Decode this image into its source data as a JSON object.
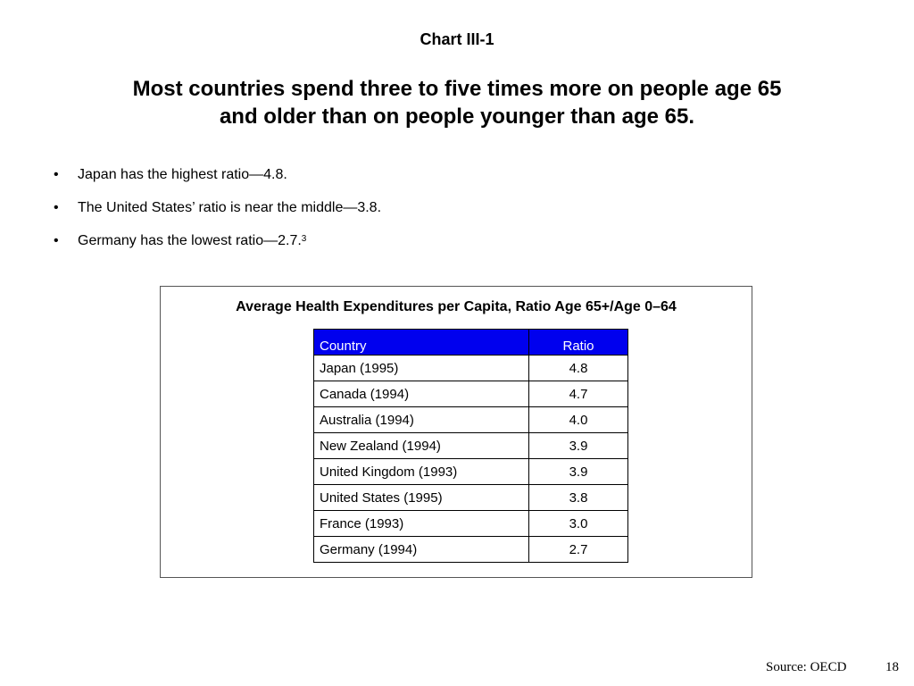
{
  "slide": {
    "chart_label": "Chart III-1",
    "headline_line1": "Most countries spend three to five times more on people age 65",
    "headline_line2": "and older than on people younger than age 65.",
    "bullets": [
      {
        "text": "Japan has the highest ratio—4.8.",
        "footnote": ""
      },
      {
        "text": "The United States’ ratio is near the middle—3.8.",
        "footnote": ""
      },
      {
        "text": "Germany has the lowest ratio—2.7.",
        "footnote": "3"
      }
    ],
    "bullet_symbol": "•",
    "source": "Source: OECD",
    "page_number": "18"
  },
  "table": {
    "title": "Average Health Expenditures per Capita, Ratio Age 65+/Age 0–64",
    "header_color": "#0000ee",
    "columns": [
      "Country",
      "Ratio"
    ],
    "rows": [
      {
        "country": "Japan (1995)",
        "ratio": "4.8"
      },
      {
        "country": "Canada (1994)",
        "ratio": "4.7"
      },
      {
        "country": "Australia (1994)",
        "ratio": "4.0"
      },
      {
        "country": "New Zealand (1994)",
        "ratio": "3.9"
      },
      {
        "country": "United Kingdom (1993)",
        "ratio": "3.9"
      },
      {
        "country": "United States (1995)",
        "ratio": "3.8"
      },
      {
        "country": "France (1993)",
        "ratio": "3.0"
      },
      {
        "country": "Germany (1994)",
        "ratio": "2.7"
      }
    ]
  }
}
